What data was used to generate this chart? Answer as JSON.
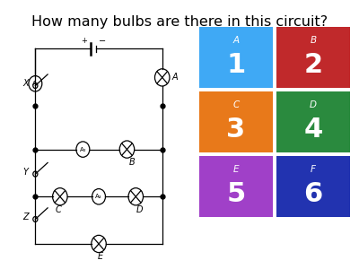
{
  "title": "How many bulbs are there in this circuit?",
  "title_fontsize": 11.5,
  "background_color": "#ffffff",
  "answer_boxes": [
    {
      "label": "A",
      "value": "1",
      "color": "#3fa9f5",
      "col": 0,
      "row": 0
    },
    {
      "label": "B",
      "value": "2",
      "color": "#c0292b",
      "col": 1,
      "row": 0
    },
    {
      "label": "C",
      "value": "3",
      "color": "#e8791a",
      "col": 0,
      "row": 1
    },
    {
      "label": "D",
      "value": "4",
      "color": "#2a8a3e",
      "col": 1,
      "row": 1
    },
    {
      "label": "E",
      "value": "5",
      "color": "#a040c8",
      "col": 0,
      "row": 2
    },
    {
      "label": "F",
      "value": "6",
      "color": "#2233b0",
      "col": 1,
      "row": 2
    }
  ]
}
